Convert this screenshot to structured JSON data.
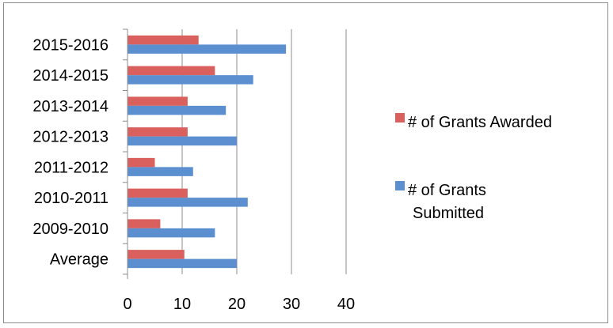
{
  "chart_data": {
    "type": "bar",
    "orientation": "horizontal",
    "categories": [
      "2015-2016",
      "2014-2015",
      "2013-2014",
      "2012-2013",
      "2011-2012",
      "2010-2011",
      "2009-2010",
      "Average"
    ],
    "series": [
      {
        "name": "# of Grants Awarded",
        "color": "#d9605d",
        "values": [
          13,
          16,
          11,
          11,
          5,
          11,
          6,
          10.4
        ]
      },
      {
        "name": "# of Grants Submitted",
        "color": "#5b8fd0",
        "values": [
          29,
          23,
          18,
          20,
          12,
          22,
          16,
          20
        ]
      }
    ],
    "xlim": [
      0,
      40
    ],
    "x_ticks": [
      "0",
      "10",
      "20",
      "30",
      "40"
    ],
    "grid": "vertical",
    "legend_position": "right",
    "legend_entries": [
      {
        "lines": [
          "# of Grants Awarded"
        ],
        "color": "#d9605d"
      },
      {
        "lines": [
          "# of Grants",
          "Submitted"
        ],
        "color": "#5b8fd0"
      }
    ]
  }
}
